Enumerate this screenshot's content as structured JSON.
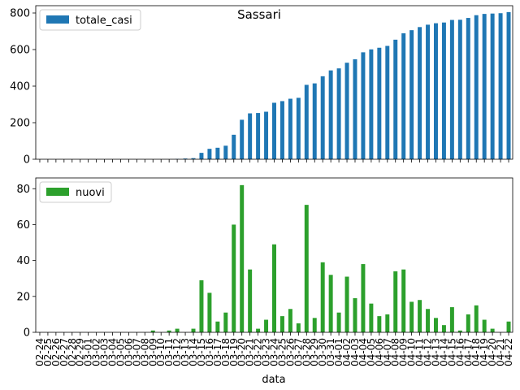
{
  "chart_data": {
    "type": "bar",
    "title": "Sassari",
    "xlabel": "data",
    "categories": [
      "02-24",
      "02-25",
      "02-26",
      "02-27",
      "02-28",
      "02-29",
      "03-01",
      "03-02",
      "03-03",
      "03-04",
      "03-05",
      "03-06",
      "03-07",
      "03-08",
      "03-09",
      "03-10",
      "03-11",
      "03-12",
      "03-13",
      "03-14",
      "03-15",
      "03-16",
      "03-17",
      "03-18",
      "03-19",
      "03-20",
      "03-21",
      "03-22",
      "03-23",
      "03-24",
      "03-25",
      "03-26",
      "03-27",
      "03-28",
      "03-29",
      "03-30",
      "03-31",
      "04-01",
      "04-02",
      "04-03",
      "04-04",
      "04-05",
      "04-06",
      "04-07",
      "04-08",
      "04-09",
      "04-10",
      "04-11",
      "04-12",
      "04-13",
      "04-14",
      "04-15",
      "04-16",
      "04-17",
      "04-18",
      "04-19",
      "04-20",
      "04-21",
      "04-22"
    ],
    "panels": [
      {
        "series": [
          {
            "name": "totale_casi",
            "color": "#1f77b4",
            "values": [
              0,
              0,
              0,
              0,
              0,
              0,
              0,
              0,
              0,
              0,
              0,
              0,
              0,
              0,
              0,
              0,
              0,
              2,
              4,
              6,
              35,
              57,
              63,
              74,
              134,
              216,
              251,
              253,
              260,
              309,
              318,
              331,
              336,
              407,
              415,
              454,
              486,
              497,
              528,
              547,
              585,
              601,
              610,
              620,
              654,
              689,
              706,
              723,
              736,
              744,
              748,
              762,
              763,
              773,
              788,
              795,
              797,
              799,
              805
            ]
          }
        ],
        "ylim": [
          0,
          840
        ],
        "yticks": [
          0,
          200,
          400,
          600,
          800
        ],
        "legend_position": "top-left"
      },
      {
        "series": [
          {
            "name": "nuovi",
            "color": "#2ca02c",
            "values": [
              0,
              0,
              0,
              0,
              0,
              0,
              0,
              0,
              0,
              0,
              0,
              0,
              0,
              0,
              1,
              0,
              1,
              2,
              0,
              2,
              29,
              22,
              6,
              11,
              60,
              82,
              35,
              2,
              7,
              49,
              9,
              13,
              5,
              71,
              8,
              39,
              32,
              11,
              31,
              19,
              38,
              16,
              9,
              10,
              34,
              35,
              17,
              18,
              13,
              8,
              4,
              14,
              1,
              10,
              15,
              7,
              2,
              0,
              6
            ]
          }
        ],
        "ylim": [
          0,
          86
        ],
        "yticks": [
          0,
          20,
          40,
          60,
          80
        ],
        "legend_position": "top-left"
      }
    ]
  }
}
